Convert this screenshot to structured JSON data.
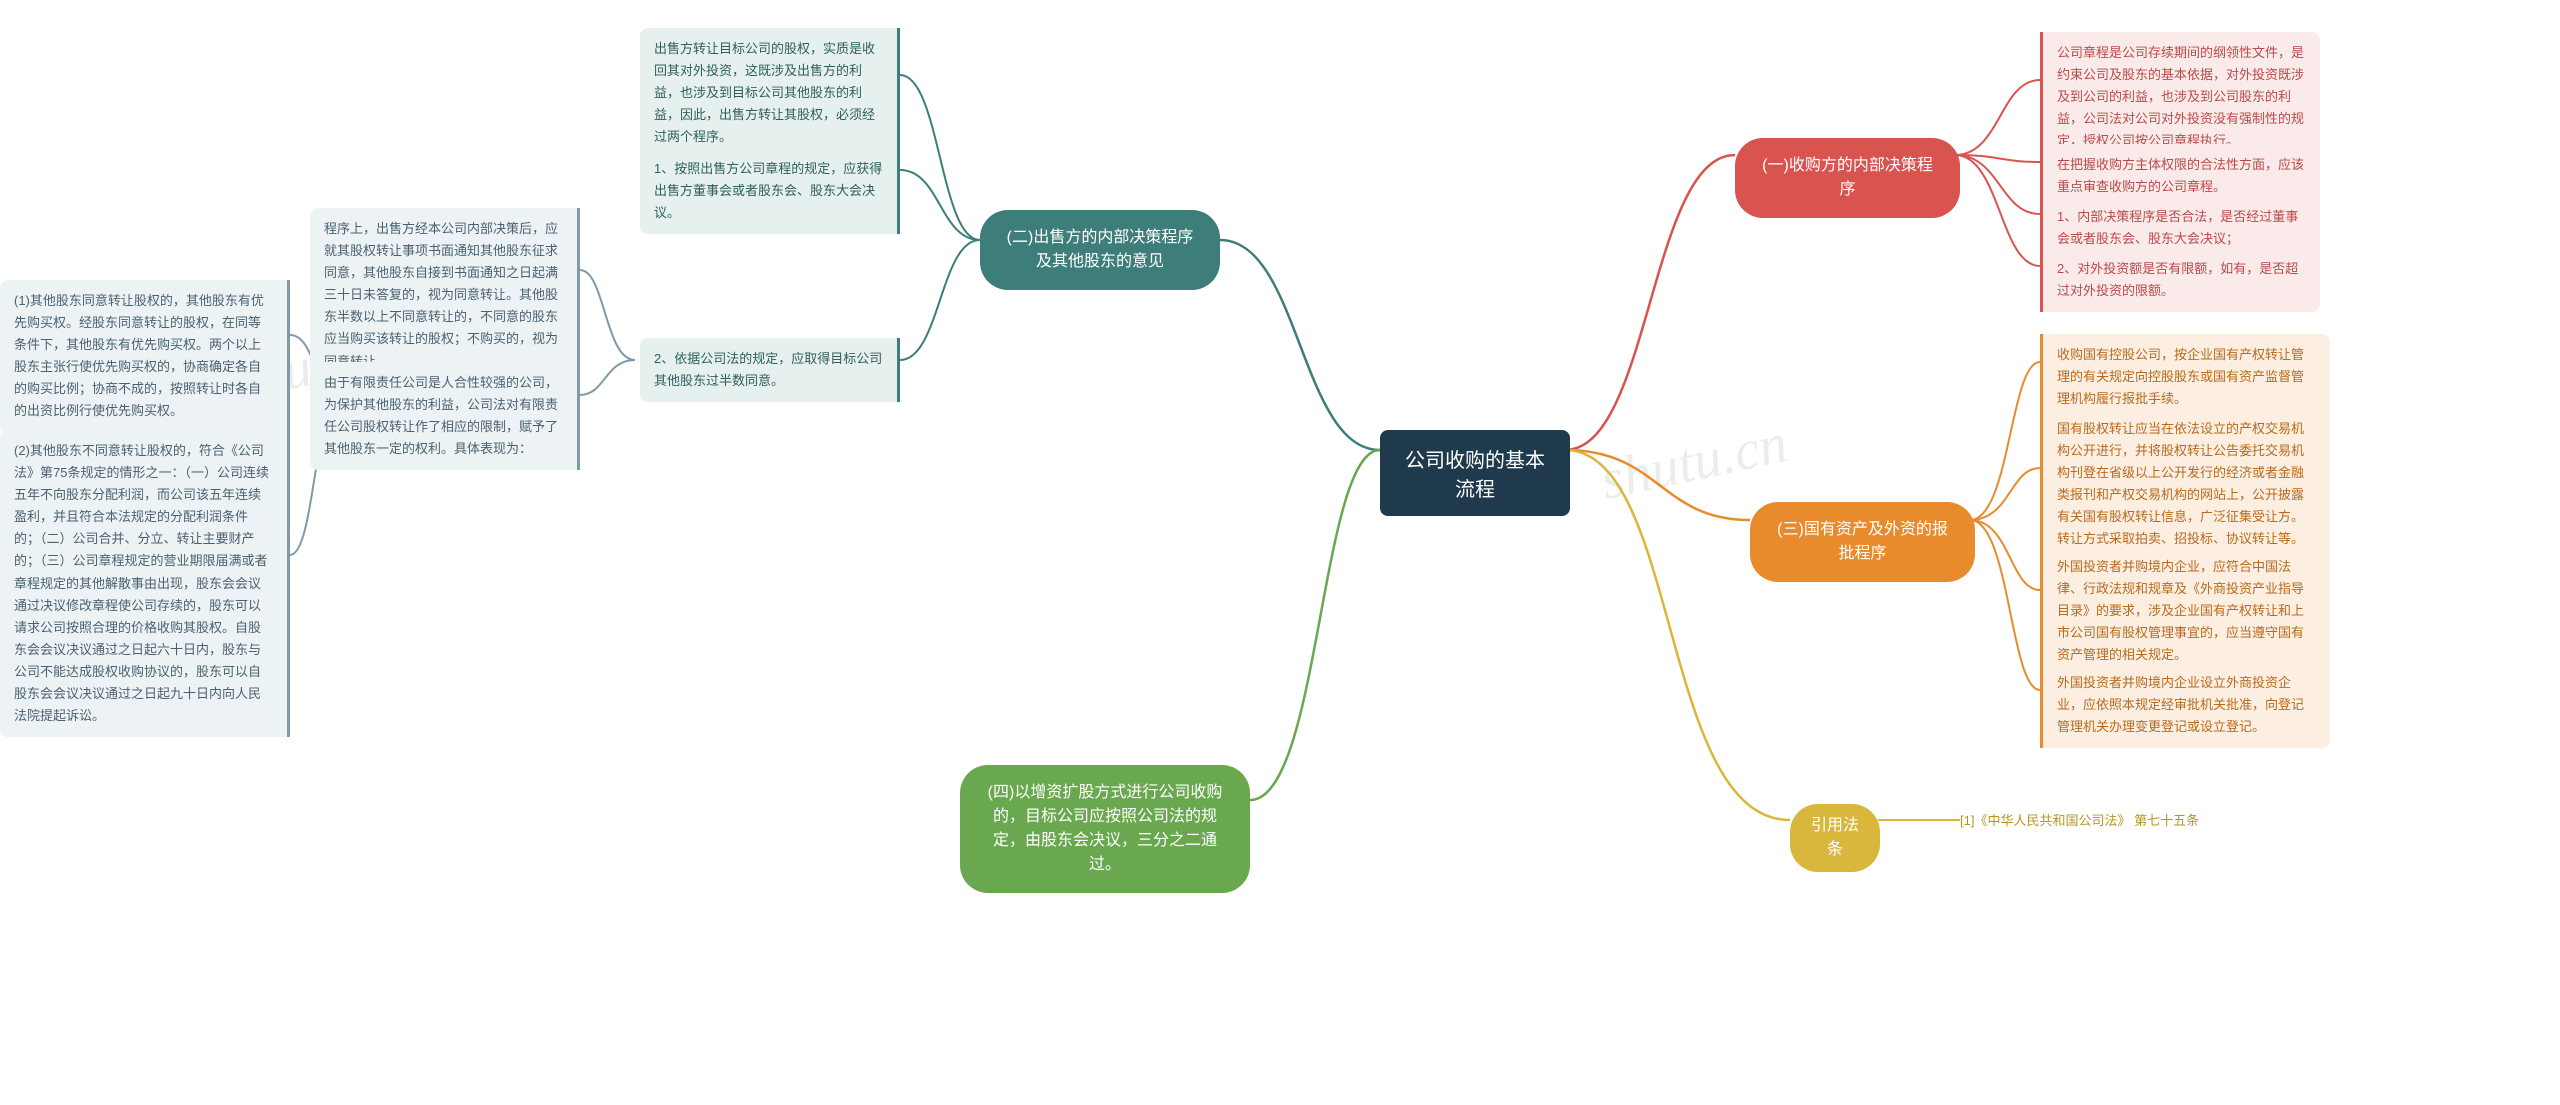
{
  "colors": {
    "center_bg": "#1f3a4d",
    "red": {
      "stroke": "#d9534f",
      "fill": "#fbeaea",
      "text": "#b94a4a"
    },
    "orange": {
      "stroke": "#e88b2d",
      "fill": "#fcefe1",
      "text": "#b86a1d"
    },
    "yellow": {
      "stroke": "#d9b63c",
      "fill": "#faf4dd",
      "text": "#8a7320"
    },
    "green": {
      "stroke": "#6aa84f",
      "fill": "#eaf3e3",
      "text": "#4c7a37"
    },
    "teal": {
      "stroke": "#3d7d7a",
      "fill": "#e6f0ef",
      "text": "#2f5f5d"
    },
    "bluegrey": {
      "stroke": "#7f9aa8",
      "fill": "#edf2f5",
      "text": "#4a6270"
    }
  },
  "center": {
    "label": "公司收购的基本流程"
  },
  "watermark": "shutu.cn",
  "branches": {
    "r1": {
      "label": "(一)收购方的内部决策程序",
      "leaves": [
        "公司章程是公司存续期间的纲领性文件，是约束公司及股东的基本依据，对外投资既涉及到公司的利益，也涉及到公司股东的利益，公司法对公司对外投资没有强制性的规定，授权公司按公司章程执行。",
        "在把握收购方主体权限的合法性方面，应该重点审查收购方的公司章程。",
        "1、内部决策程序是否合法，是否经过董事会或者股东会、股东大会决议；",
        "2、对外投资额是否有限额，如有，是否超过对外投资的限额。"
      ]
    },
    "r3": {
      "label": "(三)国有资产及外资的报批程序",
      "leaves": [
        "收购国有控股公司，按企业国有产权转让管理的有关规定向控股股东或国有资产监督管理机构履行报批手续。",
        "国有股权转让应当在依法设立的产权交易机构公开进行，并将股权转让公告委托交易机构刊登在省级以上公开发行的经济或者金融类报刊和产权交易机构的网站上，公开披露有关国有股权转让信息，广泛征集受让方。转让方式采取拍卖、招投标、协议转让等。",
        "外国投资者并购境内企业，应符合中国法律、行政法规和规章及《外商投资产业指导目录》的要求，涉及企业国有产权转让和上市公司国有股权管理事宜的，应当遵守国有资产管理的相关规定。",
        "外国投资者并购境内企业设立外商投资企业，应依照本规定经审批机关批准，向登记管理机关办理变更登记或设立登记。"
      ]
    },
    "r_law": {
      "label": "引用法条",
      "leaf": "[1]《中华人民共和国公司法》 第七十五条"
    },
    "r4": {
      "label": "(四)以增资扩股方式进行公司收购的，目标公司应按照公司法的规定，由股东会决议，三分之二通过。"
    },
    "l2": {
      "label": "(二)出售方的内部决策程序及其他股东的意见",
      "top_leaf": "出售方转让目标公司的股权，实质是收回其对外投资，这既涉及出售方的利益，也涉及到目标公司其他股东的利益，因此，出售方转让其股权，必须经过两个程序。",
      "leaf1": "1、按照出售方公司章程的规定，应获得出售方董事会或者股东会、股东大会决议。",
      "leaf2": {
        "label": "2、依据公司法的规定，应取得目标公司其他股东过半数同意。",
        "children": [
          {
            "label": "程序上，出售方经本公司内部决策后，应就其股权转让事项书面通知其他股东征求同意，其他股东自接到书面通知之日起满三十日未答复的，视为同意转让。其他股东半数以上不同意转让的，不同意的股东应当购买该转让的股权；不购买的，视为同意转让。"
          },
          {
            "label": "由于有限责任公司是人合性较强的公司，为保护其他股东的利益，公司法对有限责任公司股权转让作了相应的限制，赋予了其他股东一定的权利。具体表现为：",
            "children": [
              "(1)其他股东同意转让股权的，其他股东有优先购买权。经股东同意转让的股权，在同等条件下，其他股东有优先购买权。两个以上股东主张行使优先购买权的，协商确定各自的购买比例；协商不成的，按照转让时各自的出资比例行使优先购买权。",
              "(2)其他股东不同意转让股权的，符合《公司法》第75条规定的情形之一：（一）公司连续五年不向股东分配利润，而公司该五年连续盈利，并且符合本法规定的分配利润条件的；（二）公司合并、分立、转让主要财产的；（三）公司章程规定的营业期限届满或者章程规定的其他解散事由出现，股东会会议通过决议修改章程使公司存续的，股东可以请求公司按照合理的价格收购其股权。自股东会会议决议通过之日起六十日内，股东与公司不能达成股权收购协议的，股东可以自股东会会议决议通过之日起九十日内向人民法院提起诉讼。"
            ]
          }
        ]
      }
    }
  }
}
